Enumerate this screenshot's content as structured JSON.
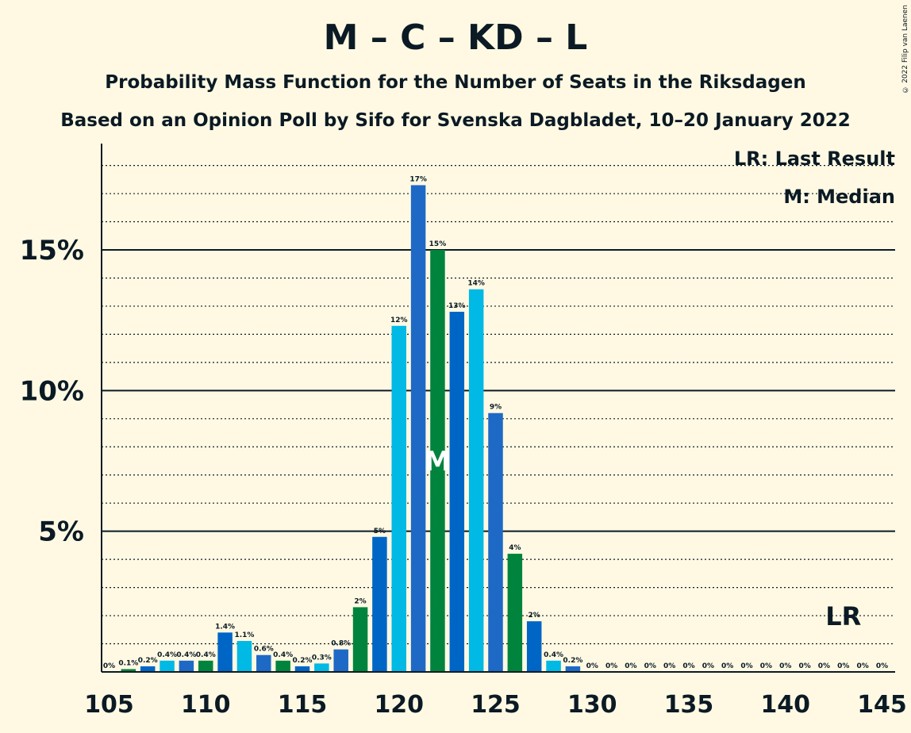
{
  "header": {
    "title": "M – C – KD – L",
    "subtitle": "Probability Mass Function for the Number of Seats in the Riksdagen",
    "subtitle2": "Based on an Opinion Poll by Sifo for Svenska Dagbladet, 10–20 January 2022",
    "copyright": "© 2022 Filip van Laenen"
  },
  "legend": {
    "lr": "LR: Last Result",
    "median": "M: Median"
  },
  "colors": {
    "background": "#FFF9E3",
    "palette": [
      "#00B9E4",
      "#1E69C6",
      "#00843D",
      "#0066C6"
    ]
  },
  "chart_data": {
    "type": "bar",
    "x": [
      105,
      106,
      107,
      108,
      109,
      110,
      111,
      112,
      113,
      114,
      115,
      116,
      117,
      118,
      119,
      120,
      121,
      122,
      123,
      124,
      125,
      126,
      127,
      128,
      129,
      130,
      131,
      132,
      133,
      134,
      135,
      136,
      137,
      138,
      139,
      140,
      141,
      142,
      143,
      144,
      145
    ],
    "values": [
      0,
      0.1,
      0.2,
      0.4,
      0.4,
      0.4,
      1.4,
      1.1,
      0.6,
      0.4,
      0.2,
      0.3,
      0.8,
      2.3,
      4.8,
      12.3,
      17.3,
      15.0,
      12.8,
      13.6,
      9.2,
      4.2,
      1.8,
      0.4,
      0.2,
      0,
      0,
      0,
      0,
      0,
      0,
      0,
      0,
      0,
      0,
      0,
      0,
      0,
      0,
      0,
      0
    ],
    "labels": [
      "0%",
      "0.1%",
      "0.2%",
      "0.4%",
      "0.4%",
      "0.4%",
      "1.4%",
      "1.1%",
      "0.6%",
      "0.4%",
      "0.2%",
      "0.3%",
      "0.8%",
      "2%",
      "5%",
      "12%",
      "17%",
      "15%",
      "13%",
      "14%",
      "9%",
      "4%",
      "2%",
      "0.4%",
      "0.2%",
      "0%",
      "0%",
      "0%",
      "0%",
      "0%",
      "0%",
      "0%",
      "0%",
      "0%",
      "0%",
      "0%",
      "0%",
      "0%",
      "0%",
      "0%",
      "0%"
    ],
    "ylim": [
      0,
      18.8
    ],
    "yticks": [
      5,
      10,
      15
    ],
    "ytick_labels": [
      "5%",
      "10%",
      "15%"
    ],
    "xticks": [
      105,
      110,
      115,
      120,
      125,
      130,
      135,
      140,
      145
    ],
    "xtick_labels": [
      "105",
      "110",
      "115",
      "120",
      "125",
      "130",
      "135",
      "140",
      "145"
    ],
    "median": 122,
    "median_label": "M",
    "last_result": 143,
    "last_result_label": "LR"
  }
}
